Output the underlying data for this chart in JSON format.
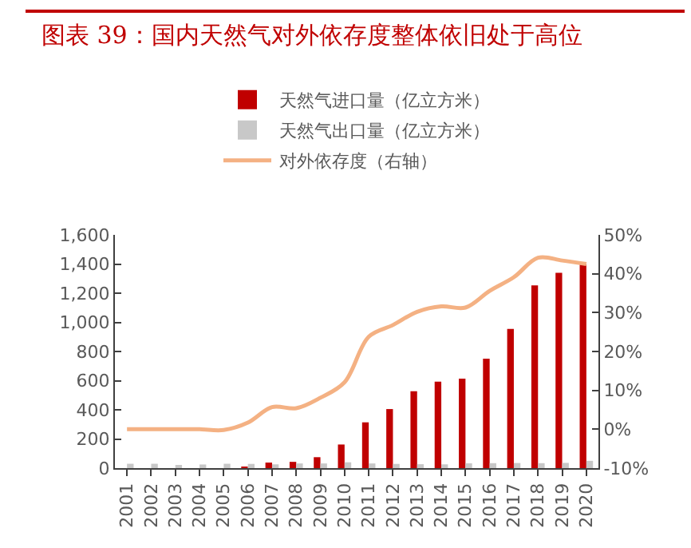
{
  "chart_data": {
    "type": "bar",
    "title": "图表 39：国内天然气对外依存度整体依旧处于高位",
    "categories": [
      "2001",
      "2002",
      "2003",
      "2004",
      "2005",
      "2006",
      "2007",
      "2008",
      "2009",
      "2010",
      "2011",
      "2012",
      "2013",
      "2014",
      "2015",
      "2016",
      "2017",
      "2018",
      "2019",
      "2020"
    ],
    "series": [
      {
        "name": "天然气进口量（亿立方米）",
        "color": "#c00000",
        "values": [
          0,
          0,
          0,
          0,
          0,
          9,
          38,
          43,
          75,
          162,
          314,
          405,
          527,
          593,
          613,
          750,
          955,
          1254,
          1340,
          1397
        ]
      },
      {
        "name": "天然气出口量（亿立方米）",
        "color": "#c8c8c8",
        "values": [
          30,
          30,
          20,
          25,
          30,
          29,
          26,
          32,
          32,
          40,
          32,
          29,
          27,
          26,
          33,
          34,
          35,
          34,
          36,
          50
        ]
      },
      {
        "name": "对外依存度（右轴）",
        "color": "#f4b183",
        "type": "line",
        "axis": "y2",
        "values": [
          0,
          0,
          0,
          0,
          -0.2,
          1.7,
          5.7,
          5.4,
          8.1,
          12.1,
          23.8,
          26.8,
          30.2,
          31.6,
          31.3,
          35.6,
          39.1,
          44.1,
          43.4,
          42.5
        ]
      }
    ],
    "ylim": [
      0,
      1600
    ],
    "yticks": [
      {
        "value": 0,
        "label": "0"
      },
      {
        "value": 200,
        "label": "200"
      },
      {
        "value": 400,
        "label": "400"
      },
      {
        "value": 600,
        "label": "600"
      },
      {
        "value": 800,
        "label": "800"
      },
      {
        "value": 1000,
        "label": "1,000"
      },
      {
        "value": 1200,
        "label": "1,200"
      },
      {
        "value": 1400,
        "label": "1,400"
      },
      {
        "value": 1600,
        "label": "1,600"
      }
    ],
    "y2lim": [
      -10,
      50
    ],
    "y2ticks": [
      {
        "value": -10,
        "label": "-10%"
      },
      {
        "value": 0,
        "label": "0%"
      },
      {
        "value": 10,
        "label": "10%"
      },
      {
        "value": 20,
        "label": "20%"
      },
      {
        "value": 30,
        "label": "30%"
      },
      {
        "value": 40,
        "label": "40%"
      },
      {
        "value": 50,
        "label": "50%"
      }
    ],
    "legend": "top",
    "grid": false,
    "marker": "none",
    "line_style": "solid"
  }
}
